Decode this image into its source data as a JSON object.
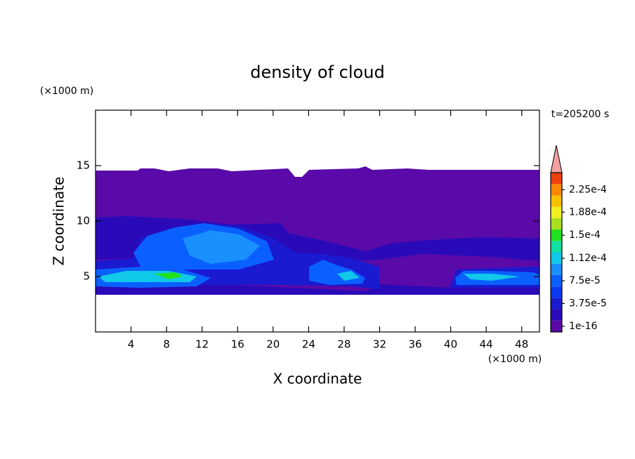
{
  "chart_data": {
    "type": "contour",
    "title": "density of cloud",
    "xlabel": "X coordinate",
    "ylabel": "Z coordinate",
    "x_unit": "(×1000 m)",
    "y_unit": "(×1000 m)",
    "annotation": "t=205200 s",
    "xlim": [
      0,
      50
    ],
    "ylim": [
      0,
      20
    ],
    "xticks": [
      4,
      8,
      12,
      16,
      20,
      24,
      28,
      32,
      36,
      40,
      44,
      48
    ],
    "yticks": [
      5,
      10,
      15
    ],
    "colorbar": {
      "lim": [
        0,
        0.0002625
      ],
      "ticks": [
        {
          "value": 1e-16,
          "label": "1e-16"
        },
        {
          "value": 3.75e-05,
          "label": "3.75e-5"
        },
        {
          "value": 7.5e-05,
          "label": "7.5e-5"
        },
        {
          "value": 0.000112,
          "label": "1.12e-4"
        },
        {
          "value": 0.00015,
          "label": "1.5e-4"
        },
        {
          "value": 0.000188,
          "label": "1.88e-4"
        },
        {
          "value": 0.000225,
          "label": "2.25e-4"
        }
      ],
      "colors": [
        "#5a0aa8",
        "#2a0ab8",
        "#1a1ad0",
        "#0a3aee",
        "#0a60ff",
        "#1a90ff",
        "#10c8e8",
        "#10e0a0",
        "#20e020",
        "#a8e020",
        "#f0f020",
        "#f8c000",
        "#f88800",
        "#f04010"
      ],
      "extend_color": "#f4a0a0"
    }
  }
}
